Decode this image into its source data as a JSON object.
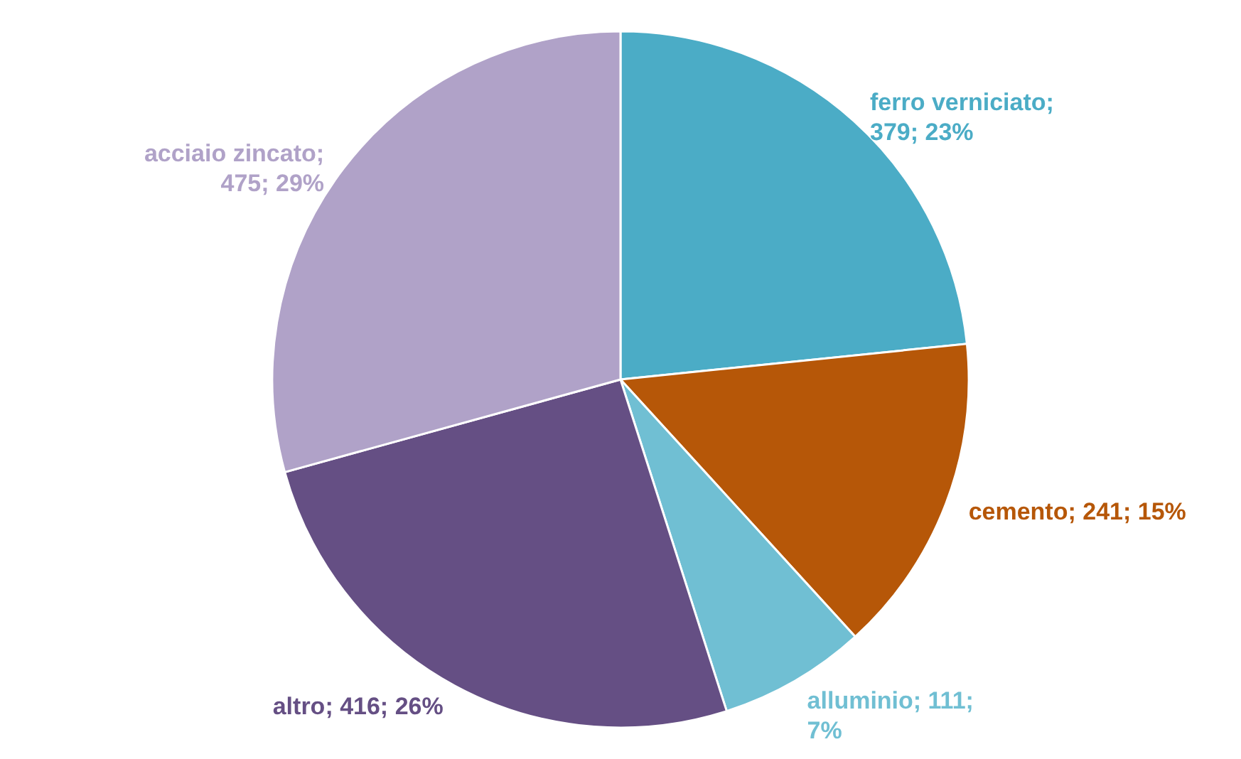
{
  "chart_data": {
    "type": "pie",
    "categories": [
      "ferro verniciato",
      "cemento",
      "alluminio",
      "altro",
      "acciaio zincato"
    ],
    "values": [
      379,
      241,
      111,
      416,
      475
    ],
    "value_labels": [
      "; 379; 23%",
      "; 241; 15%",
      "; 111; 7%",
      "; 416; 26%",
      "; 475; 29%"
    ],
    "colors": [
      "#4bacc6",
      "#b65708",
      "#70bfd3",
      "#654f84",
      "#b0a2c8"
    ]
  }
}
